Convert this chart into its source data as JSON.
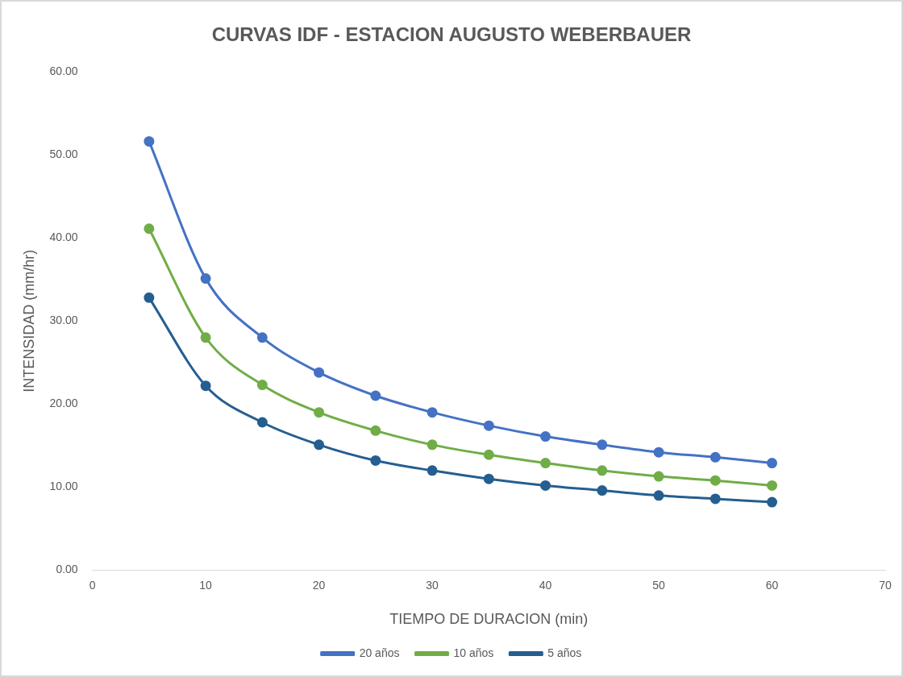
{
  "chart_data": {
    "type": "line",
    "title": "CURVAS IDF - ESTACION AUGUSTO WEBERBAUER",
    "xlabel": "TIEMPO DE DURACION (min)",
    "ylabel": "INTENSIDAD (mm/hr)",
    "x": [
      5,
      10,
      15,
      20,
      25,
      30,
      35,
      40,
      45,
      50,
      55,
      60
    ],
    "series": [
      {
        "name": "20 años",
        "color": "#4472c4",
        "values": [
          51.6,
          35.1,
          28.0,
          23.8,
          21.0,
          19.0,
          17.4,
          16.1,
          15.1,
          14.2,
          13.6,
          12.9
        ]
      },
      {
        "name": "10 años",
        "color": "#70ad47",
        "values": [
          41.1,
          28.0,
          22.3,
          19.0,
          16.8,
          15.1,
          13.9,
          12.9,
          12.0,
          11.3,
          10.8,
          10.2
        ]
      },
      {
        "name": "5 años",
        "color": "#255e91",
        "values": [
          32.8,
          22.2,
          17.8,
          15.1,
          13.2,
          12.0,
          11.0,
          10.2,
          9.6,
          9.0,
          8.6,
          8.2
        ]
      }
    ],
    "xlim": [
      0,
      70
    ],
    "xticks": [
      0,
      10,
      20,
      30,
      40,
      50,
      60,
      70
    ],
    "ylim": [
      0,
      60
    ],
    "yticks": [
      {
        "value": 0,
        "label": "0.00"
      },
      {
        "value": 10,
        "label": "10.00"
      },
      {
        "value": 20,
        "label": "20.00"
      },
      {
        "value": 30,
        "label": "30.00"
      },
      {
        "value": 40,
        "label": "40.00"
      },
      {
        "value": 50,
        "label": "50.00"
      },
      {
        "value": 60,
        "label": "60.00"
      }
    ],
    "grid": false,
    "legend": "bottom",
    "marker": "circle",
    "line_style": "solid"
  }
}
